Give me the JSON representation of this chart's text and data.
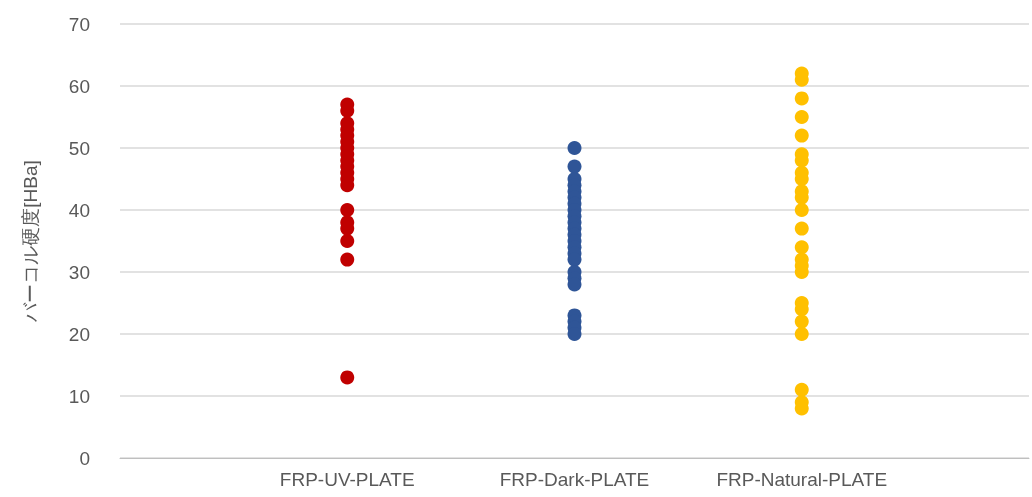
{
  "chart_data": {
    "type": "scatter",
    "ylabel": "バーコル硬度[HBa]",
    "categories": [
      null,
      "FRP-UV-PLATE",
      "FRP-Dark-PLATE",
      "FRP-Natural-PLATE",
      null
    ],
    "series": [
      {
        "color": "#c00000",
        "x": [
          "FRP-UV-PLATE",
          "FRP-UV-PLATE",
          "FRP-UV-PLATE",
          "FRP-UV-PLATE",
          "FRP-UV-PLATE",
          "FRP-UV-PLATE",
          "FRP-UV-PLATE",
          "FRP-UV-PLATE",
          "FRP-UV-PLATE",
          "FRP-UV-PLATE",
          "FRP-UV-PLATE",
          "FRP-UV-PLATE",
          "FRP-UV-PLATE",
          "FRP-UV-PLATE",
          "FRP-UV-PLATE",
          "FRP-UV-PLATE",
          "FRP-UV-PLATE",
          "FRP-UV-PLATE",
          "FRP-UV-PLATE"
        ],
        "values": [
          57,
          56,
          54,
          53,
          52,
          51,
          50,
          49,
          48,
          47,
          46,
          45,
          44,
          40,
          38,
          37,
          35,
          32,
          13
        ]
      },
      {
        "color": "#2f5597",
        "x": [
          "FRP-Dark-PLATE",
          "FRP-Dark-PLATE",
          "FRP-Dark-PLATE",
          "FRP-Dark-PLATE",
          "FRP-Dark-PLATE",
          "FRP-Dark-PLATE",
          "FRP-Dark-PLATE",
          "FRP-Dark-PLATE",
          "FRP-Dark-PLATE",
          "FRP-Dark-PLATE",
          "FRP-Dark-PLATE",
          "FRP-Dark-PLATE",
          "FRP-Dark-PLATE",
          "FRP-Dark-PLATE",
          "FRP-Dark-PLATE",
          "FRP-Dark-PLATE",
          "FRP-Dark-PLATE",
          "FRP-Dark-PLATE",
          "FRP-Dark-PLATE",
          "FRP-Dark-PLATE",
          "FRP-Dark-PLATE",
          "FRP-Dark-PLATE",
          "FRP-Dark-PLATE"
        ],
        "values": [
          50,
          47,
          45,
          44,
          43,
          42,
          41,
          40,
          39,
          38,
          37,
          36,
          35,
          34,
          33,
          32,
          30,
          29,
          28,
          23,
          22,
          21,
          20
        ]
      },
      {
        "color": "#ffc000",
        "x": [
          "FRP-Natural-PLATE",
          "FRP-Natural-PLATE",
          "FRP-Natural-PLATE",
          "FRP-Natural-PLATE",
          "FRP-Natural-PLATE",
          "FRP-Natural-PLATE",
          "FRP-Natural-PLATE",
          "FRP-Natural-PLATE",
          "FRP-Natural-PLATE",
          "FRP-Natural-PLATE",
          "FRP-Natural-PLATE",
          "FRP-Natural-PLATE",
          "FRP-Natural-PLATE",
          "FRP-Natural-PLATE",
          "FRP-Natural-PLATE",
          "FRP-Natural-PLATE",
          "FRP-Natural-PLATE",
          "FRP-Natural-PLATE",
          "FRP-Natural-PLATE",
          "FRP-Natural-PLATE",
          "FRP-Natural-PLATE",
          "FRP-Natural-PLATE",
          "FRP-Natural-PLATE",
          "FRP-Natural-PLATE"
        ],
        "values": [
          62,
          61,
          58,
          55,
          52,
          49,
          48,
          46,
          45,
          43,
          42,
          40,
          37,
          34,
          32,
          31,
          30,
          25,
          24,
          22,
          20,
          11,
          9,
          8
        ]
      }
    ],
    "ylim": [
      0,
      70
    ],
    "yticks": [
      0,
      10,
      20,
      30,
      40,
      50,
      60,
      70
    ],
    "grid": "y",
    "marker": "circle"
  }
}
